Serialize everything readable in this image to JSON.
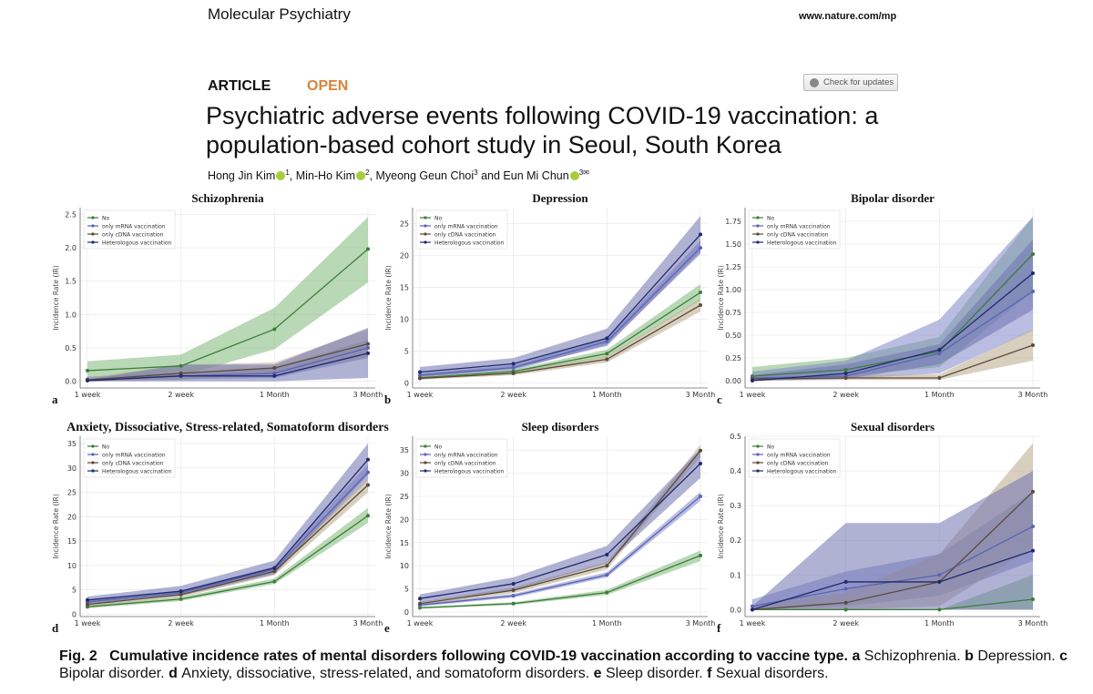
{
  "header": {
    "journal": "Molecular Psychiatry",
    "site": "www.nature.com/mp"
  },
  "article": {
    "type": "ARTICLE",
    "access": "OPEN",
    "check_updates": "Check for updates",
    "title": "Psychiatric adverse events following COVID-19 vaccination: a population-based cohort study in Seoul, South Korea",
    "authors": [
      {
        "name": "Hong Jin Kim",
        "aff": "1",
        "orcid": true
      },
      {
        "name": "Min-Ho Kim",
        "aff": "2",
        "orcid": true
      },
      {
        "name": "Myeong Geun Choi",
        "aff": "3",
        "orcid": false
      },
      {
        "name": "Eun Mi Chun",
        "aff": "3",
        "orcid": true,
        "corresponding": true
      }
    ],
    "author_sep": ", ",
    "author_and": " and "
  },
  "caption": {
    "label": "Fig. 2",
    "bold": "Cumulative incidence rates of mental disorders following COVID-19 vaccination according to vaccine type.",
    "parts": [
      {
        "letter": "a",
        "text": "Schizophrenia."
      },
      {
        "letter": "b",
        "text": "Depression."
      },
      {
        "letter": "c",
        "text": "Bipolar disorder."
      },
      {
        "letter": "d",
        "text": "Anxiety, dissociative, stress-related, and somatoform disorders."
      },
      {
        "letter": "e",
        "text": "Sleep disorder."
      },
      {
        "letter": "f",
        "text": "Sexual disorders."
      }
    ]
  },
  "series_style": {
    "No": {
      "line": "#3b7d3b",
      "band": "#7fb878"
    },
    "only mRNA vaccination": {
      "line": "#5a63b5",
      "band": "#7f86c8"
    },
    "only cDNA vaccination": {
      "line": "#5a4a3a",
      "band": "#b8a888"
    },
    "Heterologous vaccination": {
      "line": "#1f2a6e",
      "band": "#6f72b0"
    }
  },
  "chart_data": [
    {
      "panel": "a",
      "type": "line",
      "title": "Schizophrenia",
      "ylabel": "Incidence Rate (IR)",
      "categories": [
        "1 week",
        "2 week",
        "1 Month",
        "3 Month"
      ],
      "ylim": [
        -0.1,
        2.6
      ],
      "yticks": [
        0.0,
        0.5,
        1.0,
        1.5,
        2.0,
        2.5
      ],
      "ytick_fmt": 1,
      "grid": true,
      "legend": "top-left",
      "series": [
        {
          "name": "No",
          "values": [
            0.16,
            0.23,
            0.78,
            1.98
          ],
          "lower": [
            0.05,
            0.08,
            0.48,
            1.48
          ],
          "upper": [
            0.3,
            0.4,
            1.1,
            2.46
          ]
        },
        {
          "name": "only mRNA vaccination",
          "values": [
            0.03,
            0.08,
            0.12,
            0.5
          ],
          "lower": [
            0.0,
            0.03,
            0.05,
            0.35
          ],
          "upper": [
            0.07,
            0.13,
            0.2,
            0.62
          ]
        },
        {
          "name": "only cDNA vaccination",
          "values": [
            0.02,
            0.12,
            0.2,
            0.56
          ],
          "lower": [
            0.0,
            0.02,
            0.12,
            0.35
          ],
          "upper": [
            0.05,
            0.25,
            0.28,
            0.78
          ]
        },
        {
          "name": "Heterologous vaccination",
          "values": [
            0.01,
            0.08,
            0.08,
            0.42
          ],
          "lower": [
            0.0,
            0.0,
            0.0,
            0.05
          ],
          "upper": [
            0.03,
            0.25,
            0.25,
            0.8
          ]
        }
      ]
    },
    {
      "panel": "b",
      "type": "line",
      "title": "Depression",
      "ylabel": "Incidence Rate (IR)",
      "categories": [
        "1 week",
        "2 week",
        "1 Month",
        "3 Month"
      ],
      "ylim": [
        -0.8,
        27.5
      ],
      "yticks": [
        0,
        5,
        10,
        15,
        20,
        25
      ],
      "ytick_fmt": 0,
      "grid": true,
      "legend": "top-left",
      "series": [
        {
          "name": "No",
          "values": [
            0.8,
            1.8,
            4.6,
            14.2
          ],
          "lower": [
            0.6,
            1.5,
            4.0,
            13.0
          ],
          "upper": [
            1.1,
            2.1,
            5.2,
            15.5
          ]
        },
        {
          "name": "only mRNA vaccination",
          "values": [
            1.2,
            2.4,
            6.5,
            21.2
          ],
          "lower": [
            0.9,
            2.0,
            6.0,
            20.2
          ],
          "upper": [
            1.5,
            2.8,
            7.0,
            22.3
          ]
        },
        {
          "name": "only cDNA vaccination",
          "values": [
            0.7,
            1.5,
            3.7,
            12.2
          ],
          "lower": [
            0.5,
            1.2,
            3.2,
            11.2
          ],
          "upper": [
            0.9,
            1.8,
            4.2,
            13.2
          ]
        },
        {
          "name": "Heterologous vaccination",
          "values": [
            1.7,
            3.0,
            7.0,
            23.3
          ],
          "lower": [
            1.0,
            2.2,
            5.8,
            20.5
          ],
          "upper": [
            2.5,
            3.9,
            8.5,
            26.2
          ]
        }
      ]
    },
    {
      "panel": "c",
      "type": "line",
      "title": "Bipolar disorder",
      "ylabel": "Incidence Rate (IR)",
      "categories": [
        "1 week",
        "2 week",
        "1 Month",
        "3 Month"
      ],
      "ylim": [
        -0.08,
        1.9
      ],
      "yticks": [
        0.0,
        0.25,
        0.5,
        0.75,
        1.0,
        1.25,
        1.5,
        1.75
      ],
      "ytick_fmt": 2,
      "grid": true,
      "legend": "top-left",
      "series": [
        {
          "name": "No",
          "values": [
            0.05,
            0.12,
            0.32,
            1.39
          ],
          "lower": [
            0.0,
            0.05,
            0.15,
            0.98
          ],
          "upper": [
            0.15,
            0.25,
            0.48,
            1.8
          ]
        },
        {
          "name": "only mRNA vaccination",
          "values": [
            0.03,
            0.05,
            0.3,
            0.98
          ],
          "lower": [
            0.0,
            0.02,
            0.08,
            0.55
          ],
          "upper": [
            0.1,
            0.22,
            0.67,
            1.8
          ]
        },
        {
          "name": "only cDNA vaccination",
          "values": [
            0.02,
            0.03,
            0.03,
            0.39
          ],
          "lower": [
            0.0,
            0.01,
            0.01,
            0.22
          ],
          "upper": [
            0.05,
            0.06,
            0.07,
            0.56
          ]
        },
        {
          "name": "Heterologous vaccination",
          "values": [
            0.0,
            0.08,
            0.34,
            1.18
          ],
          "lower": [
            0.0,
            0.02,
            0.18,
            0.78
          ],
          "upper": [
            0.06,
            0.18,
            0.4,
            1.55
          ]
        }
      ]
    },
    {
      "panel": "d",
      "type": "line",
      "title": "Anxiety, Dissociative, Stress-related, Somatoform disorders",
      "ylabel": "Incidence Rate (IR)",
      "categories": [
        "1 week",
        "2 week",
        "1 Month",
        "3 Month"
      ],
      "ylim": [
        -0.5,
        36.5
      ],
      "yticks": [
        0,
        5,
        10,
        15,
        20,
        25,
        30,
        35
      ],
      "ytick_fmt": 0,
      "grid": true,
      "legend": "top-left",
      "series": [
        {
          "name": "No",
          "values": [
            1.5,
            3.1,
            6.7,
            20.2
          ],
          "lower": [
            1.2,
            2.7,
            6.2,
            18.7
          ],
          "upper": [
            1.9,
            3.5,
            7.3,
            21.8
          ]
        },
        {
          "name": "only mRNA vaccination",
          "values": [
            2.5,
            4.4,
            9.2,
            29.1
          ],
          "lower": [
            2.0,
            3.9,
            8.6,
            27.5
          ],
          "upper": [
            3.0,
            4.9,
            9.8,
            30.8
          ]
        },
        {
          "name": "only cDNA vaccination",
          "values": [
            2.0,
            4.0,
            8.8,
            26.5
          ],
          "lower": [
            1.6,
            3.5,
            8.0,
            25.0
          ],
          "upper": [
            2.4,
            4.5,
            9.5,
            28.0
          ]
        },
        {
          "name": "Heterologous vaccination",
          "values": [
            2.9,
            4.7,
            9.5,
            31.7
          ],
          "lower": [
            2.2,
            3.8,
            8.2,
            28.5
          ],
          "upper": [
            3.6,
            5.8,
            11.0,
            35.0
          ]
        }
      ]
    },
    {
      "panel": "e",
      "type": "line",
      "title": "Sleep disorders",
      "ylabel": "Incidence Rate (IR)",
      "categories": [
        "1 week",
        "2 week",
        "1 Month",
        "3 Month"
      ],
      "ylim": [
        -1,
        38
      ],
      "yticks": [
        0,
        5,
        10,
        15,
        20,
        25,
        30,
        35
      ],
      "ytick_fmt": 0,
      "grid": true,
      "legend": "top-left",
      "series": [
        {
          "name": "No",
          "values": [
            0.9,
            1.8,
            4.2,
            12.2
          ],
          "lower": [
            0.7,
            1.5,
            3.7,
            11.0
          ],
          "upper": [
            1.1,
            2.1,
            4.8,
            13.3
          ]
        },
        {
          "name": "only mRNA vaccination",
          "values": [
            1.5,
            3.5,
            8.0,
            25.0
          ],
          "lower": [
            1.2,
            3.1,
            7.5,
            24.0
          ],
          "upper": [
            1.8,
            3.9,
            8.6,
            26.0
          ]
        },
        {
          "name": "only cDNA vaccination",
          "values": [
            1.8,
            4.7,
            10.0,
            34.9
          ],
          "lower": [
            1.4,
            4.1,
            9.2,
            33.5
          ],
          "upper": [
            2.2,
            5.3,
            10.8,
            36.2
          ]
        },
        {
          "name": "Heterologous vaccination",
          "values": [
            2.9,
            6.1,
            12.4,
            32.1
          ],
          "lower": [
            2.0,
            4.8,
            10.5,
            29.0
          ],
          "upper": [
            3.8,
            7.5,
            14.3,
            35.3
          ]
        }
      ]
    },
    {
      "panel": "f",
      "type": "line",
      "title": "Sexual disorders",
      "ylabel": "Incidence Rate (IR)",
      "categories": [
        "1 week",
        "2 week",
        "1 Month",
        "3 Month"
      ],
      "ylim": [
        -0.02,
        0.5
      ],
      "yticks": [
        0.0,
        0.1,
        0.2,
        0.3,
        0.4,
        0.5
      ],
      "ytick_fmt": 1,
      "grid": true,
      "legend": "top-left",
      "series": [
        {
          "name": "No",
          "values": [
            0.0,
            0.0,
            0.0,
            0.03
          ],
          "lower": [
            0.0,
            0.0,
            0.0,
            0.0
          ],
          "upper": [
            0.0,
            0.0,
            0.0,
            0.1
          ]
        },
        {
          "name": "only mRNA vaccination",
          "values": [
            0.01,
            0.06,
            0.1,
            0.24
          ],
          "lower": [
            0.0,
            0.01,
            0.04,
            0.14
          ],
          "upper": [
            0.03,
            0.11,
            0.16,
            0.34
          ]
        },
        {
          "name": "only cDNA vaccination",
          "values": [
            0.0,
            0.02,
            0.08,
            0.34
          ],
          "lower": [
            0.0,
            0.0,
            0.01,
            0.18
          ],
          "upper": [
            0.01,
            0.05,
            0.16,
            0.48
          ]
        },
        {
          "name": "Heterologous vaccination",
          "values": [
            0.0,
            0.08,
            0.08,
            0.17
          ],
          "lower": [
            0.0,
            0.0,
            0.0,
            0.0
          ],
          "upper": [
            0.01,
            0.25,
            0.25,
            0.4
          ]
        }
      ]
    }
  ]
}
